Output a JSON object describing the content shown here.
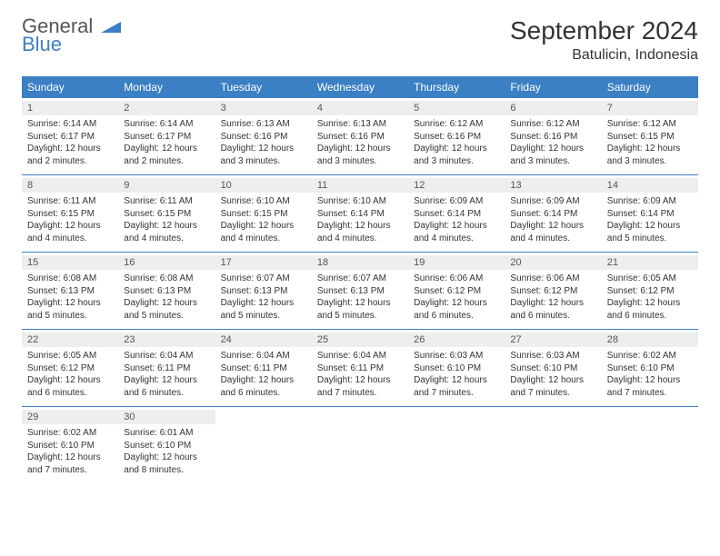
{
  "logo": {
    "word1": "General",
    "word2": "Blue"
  },
  "title": "September 2024",
  "location": "Batulicin, Indonesia",
  "colors": {
    "header_bg": "#3b7fc4",
    "header_text": "#ffffff",
    "daynum_bg": "#eeeeee",
    "row_border": "#3b7fc4",
    "body_text": "#333333",
    "logo_gray": "#555555",
    "logo_blue": "#3b7fc4",
    "page_bg": "#ffffff"
  },
  "day_names": [
    "Sunday",
    "Monday",
    "Tuesday",
    "Wednesday",
    "Thursday",
    "Friday",
    "Saturday"
  ],
  "weeks": [
    [
      {
        "n": "1",
        "sr": "Sunrise: 6:14 AM",
        "ss": "Sunset: 6:17 PM",
        "dl1": "Daylight: 12 hours",
        "dl2": "and 2 minutes."
      },
      {
        "n": "2",
        "sr": "Sunrise: 6:14 AM",
        "ss": "Sunset: 6:17 PM",
        "dl1": "Daylight: 12 hours",
        "dl2": "and 2 minutes."
      },
      {
        "n": "3",
        "sr": "Sunrise: 6:13 AM",
        "ss": "Sunset: 6:16 PM",
        "dl1": "Daylight: 12 hours",
        "dl2": "and 3 minutes."
      },
      {
        "n": "4",
        "sr": "Sunrise: 6:13 AM",
        "ss": "Sunset: 6:16 PM",
        "dl1": "Daylight: 12 hours",
        "dl2": "and 3 minutes."
      },
      {
        "n": "5",
        "sr": "Sunrise: 6:12 AM",
        "ss": "Sunset: 6:16 PM",
        "dl1": "Daylight: 12 hours",
        "dl2": "and 3 minutes."
      },
      {
        "n": "6",
        "sr": "Sunrise: 6:12 AM",
        "ss": "Sunset: 6:16 PM",
        "dl1": "Daylight: 12 hours",
        "dl2": "and 3 minutes."
      },
      {
        "n": "7",
        "sr": "Sunrise: 6:12 AM",
        "ss": "Sunset: 6:15 PM",
        "dl1": "Daylight: 12 hours",
        "dl2": "and 3 minutes."
      }
    ],
    [
      {
        "n": "8",
        "sr": "Sunrise: 6:11 AM",
        "ss": "Sunset: 6:15 PM",
        "dl1": "Daylight: 12 hours",
        "dl2": "and 4 minutes."
      },
      {
        "n": "9",
        "sr": "Sunrise: 6:11 AM",
        "ss": "Sunset: 6:15 PM",
        "dl1": "Daylight: 12 hours",
        "dl2": "and 4 minutes."
      },
      {
        "n": "10",
        "sr": "Sunrise: 6:10 AM",
        "ss": "Sunset: 6:15 PM",
        "dl1": "Daylight: 12 hours",
        "dl2": "and 4 minutes."
      },
      {
        "n": "11",
        "sr": "Sunrise: 6:10 AM",
        "ss": "Sunset: 6:14 PM",
        "dl1": "Daylight: 12 hours",
        "dl2": "and 4 minutes."
      },
      {
        "n": "12",
        "sr": "Sunrise: 6:09 AM",
        "ss": "Sunset: 6:14 PM",
        "dl1": "Daylight: 12 hours",
        "dl2": "and 4 minutes."
      },
      {
        "n": "13",
        "sr": "Sunrise: 6:09 AM",
        "ss": "Sunset: 6:14 PM",
        "dl1": "Daylight: 12 hours",
        "dl2": "and 4 minutes."
      },
      {
        "n": "14",
        "sr": "Sunrise: 6:09 AM",
        "ss": "Sunset: 6:14 PM",
        "dl1": "Daylight: 12 hours",
        "dl2": "and 5 minutes."
      }
    ],
    [
      {
        "n": "15",
        "sr": "Sunrise: 6:08 AM",
        "ss": "Sunset: 6:13 PM",
        "dl1": "Daylight: 12 hours",
        "dl2": "and 5 minutes."
      },
      {
        "n": "16",
        "sr": "Sunrise: 6:08 AM",
        "ss": "Sunset: 6:13 PM",
        "dl1": "Daylight: 12 hours",
        "dl2": "and 5 minutes."
      },
      {
        "n": "17",
        "sr": "Sunrise: 6:07 AM",
        "ss": "Sunset: 6:13 PM",
        "dl1": "Daylight: 12 hours",
        "dl2": "and 5 minutes."
      },
      {
        "n": "18",
        "sr": "Sunrise: 6:07 AM",
        "ss": "Sunset: 6:13 PM",
        "dl1": "Daylight: 12 hours",
        "dl2": "and 5 minutes."
      },
      {
        "n": "19",
        "sr": "Sunrise: 6:06 AM",
        "ss": "Sunset: 6:12 PM",
        "dl1": "Daylight: 12 hours",
        "dl2": "and 6 minutes."
      },
      {
        "n": "20",
        "sr": "Sunrise: 6:06 AM",
        "ss": "Sunset: 6:12 PM",
        "dl1": "Daylight: 12 hours",
        "dl2": "and 6 minutes."
      },
      {
        "n": "21",
        "sr": "Sunrise: 6:05 AM",
        "ss": "Sunset: 6:12 PM",
        "dl1": "Daylight: 12 hours",
        "dl2": "and 6 minutes."
      }
    ],
    [
      {
        "n": "22",
        "sr": "Sunrise: 6:05 AM",
        "ss": "Sunset: 6:12 PM",
        "dl1": "Daylight: 12 hours",
        "dl2": "and 6 minutes."
      },
      {
        "n": "23",
        "sr": "Sunrise: 6:04 AM",
        "ss": "Sunset: 6:11 PM",
        "dl1": "Daylight: 12 hours",
        "dl2": "and 6 minutes."
      },
      {
        "n": "24",
        "sr": "Sunrise: 6:04 AM",
        "ss": "Sunset: 6:11 PM",
        "dl1": "Daylight: 12 hours",
        "dl2": "and 6 minutes."
      },
      {
        "n": "25",
        "sr": "Sunrise: 6:04 AM",
        "ss": "Sunset: 6:11 PM",
        "dl1": "Daylight: 12 hours",
        "dl2": "and 7 minutes."
      },
      {
        "n": "26",
        "sr": "Sunrise: 6:03 AM",
        "ss": "Sunset: 6:10 PM",
        "dl1": "Daylight: 12 hours",
        "dl2": "and 7 minutes."
      },
      {
        "n": "27",
        "sr": "Sunrise: 6:03 AM",
        "ss": "Sunset: 6:10 PM",
        "dl1": "Daylight: 12 hours",
        "dl2": "and 7 minutes."
      },
      {
        "n": "28",
        "sr": "Sunrise: 6:02 AM",
        "ss": "Sunset: 6:10 PM",
        "dl1": "Daylight: 12 hours",
        "dl2": "and 7 minutes."
      }
    ],
    [
      {
        "n": "29",
        "sr": "Sunrise: 6:02 AM",
        "ss": "Sunset: 6:10 PM",
        "dl1": "Daylight: 12 hours",
        "dl2": "and 7 minutes."
      },
      {
        "n": "30",
        "sr": "Sunrise: 6:01 AM",
        "ss": "Sunset: 6:10 PM",
        "dl1": "Daylight: 12 hours",
        "dl2": "and 8 minutes."
      },
      null,
      null,
      null,
      null,
      null
    ]
  ]
}
